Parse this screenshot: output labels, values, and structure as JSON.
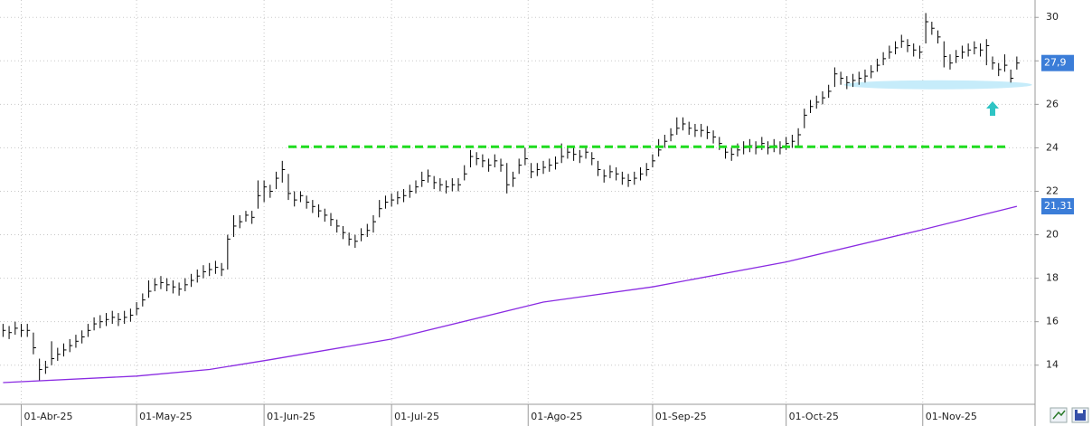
{
  "chart_data": {
    "type": "ohlc",
    "xlim": [
      -3.5,
      167
    ],
    "ylim": [
      12.2,
      30.8
    ],
    "grid": true,
    "yticks": [
      14,
      16,
      18,
      20,
      22,
      24,
      26,
      28,
      30
    ],
    "xticks": [
      {
        "value": 0,
        "label": "01-Abr-25"
      },
      {
        "value": 19,
        "label": "01-May-25"
      },
      {
        "value": 40,
        "label": "01-Jun-25"
      },
      {
        "value": 61,
        "label": "01-Jul-25"
      },
      {
        "value": 83.5,
        "label": "01-Ago-25"
      },
      {
        "value": 104,
        "label": "01-Sep-25"
      },
      {
        "value": 126,
        "label": "01-Oct-25"
      },
      {
        "value": 148.5,
        "label": "01-Nov-25"
      }
    ],
    "x": [
      -3,
      -2,
      -1,
      0,
      1,
      2,
      3,
      4,
      5,
      6,
      7,
      8,
      9,
      10,
      11,
      12,
      13,
      14,
      15,
      16,
      17,
      18,
      19,
      20,
      21,
      22,
      23,
      24,
      25,
      26,
      27,
      28,
      29,
      30,
      31,
      32,
      33,
      34,
      35,
      36,
      37,
      38,
      39,
      40,
      41,
      42,
      43,
      44,
      45,
      46,
      47,
      48,
      49,
      50,
      51,
      52,
      53,
      54,
      55,
      56,
      57,
      58,
      59,
      60,
      61,
      62,
      63,
      64,
      65,
      66,
      67,
      68,
      69,
      70,
      71,
      72,
      73,
      74,
      75,
      76,
      77,
      78,
      79,
      80,
      81,
      82,
      83,
      84,
      85,
      86,
      87,
      88,
      89,
      90,
      91,
      92,
      93,
      94,
      95,
      96,
      97,
      98,
      99,
      100,
      101,
      102,
      103,
      104,
      105,
      106,
      107,
      108,
      109,
      110,
      111,
      112,
      113,
      114,
      115,
      116,
      117,
      118,
      119,
      120,
      121,
      122,
      123,
      124,
      125,
      126,
      127,
      128,
      129,
      130,
      131,
      132,
      133,
      134,
      135,
      136,
      137,
      138,
      139,
      140,
      141,
      142,
      143,
      144,
      145,
      146,
      147,
      148,
      149,
      150,
      151,
      152,
      153,
      154,
      155,
      156,
      157,
      158,
      159,
      160,
      161,
      162,
      163,
      164
    ],
    "series": [
      {
        "color": "#000000",
        "close": [
          15.6,
          15.5,
          15.7,
          15.6,
          15.6,
          14.8,
          13.8,
          13.9,
          14.3,
          14.5,
          14.7,
          14.9,
          15.1,
          15.3,
          15.6,
          15.9,
          16.0,
          16.1,
          16.2,
          16.1,
          16.2,
          16.3,
          16.6,
          17.0,
          17.4,
          17.7,
          17.8,
          17.7,
          17.6,
          17.5,
          17.7,
          17.9,
          18.1,
          18.3,
          18.4,
          18.5,
          18.4,
          19.8,
          20.4,
          20.6,
          20.9,
          20.8,
          21.8,
          22.2,
          22.0,
          22.6,
          23.0,
          21.9,
          21.6,
          21.8,
          21.5,
          21.3,
          21.1,
          20.9,
          20.7,
          20.4,
          20.1,
          19.8,
          19.7,
          20.0,
          20.2,
          20.6,
          21.2,
          21.5,
          21.6,
          21.7,
          21.8,
          22.0,
          22.2,
          22.5,
          22.7,
          22.4,
          22.3,
          22.2,
          22.3,
          22.3,
          22.8,
          23.6,
          23.5,
          23.4,
          23.2,
          23.4,
          23.2,
          22.3,
          22.6,
          23.2,
          23.5,
          22.9,
          23.0,
          23.1,
          23.2,
          23.3,
          23.6,
          23.8,
          23.7,
          23.6,
          23.8,
          23.5,
          23.0,
          22.7,
          22.9,
          22.8,
          22.6,
          22.5,
          22.6,
          22.8,
          23.0,
          23.4,
          23.9,
          24.3,
          24.6,
          24.9,
          25.1,
          24.9,
          24.8,
          24.8,
          24.7,
          24.5,
          24.2,
          23.8,
          23.7,
          23.9,
          24.0,
          24.1,
          24.0,
          24.2,
          24.0,
          24.1,
          24.0,
          24.2,
          24.3,
          24.6,
          25.5,
          25.9,
          26.1,
          26.3,
          26.6,
          27.4,
          27.2,
          27.0,
          27.1,
          27.2,
          27.3,
          27.5,
          27.8,
          28.1,
          28.4,
          28.6,
          28.9,
          28.7,
          28.5,
          28.4,
          29.8,
          29.5,
          29.1,
          28.2,
          27.9,
          28.2,
          28.4,
          28.5,
          28.6,
          28.5,
          28.7,
          27.9,
          27.6,
          27.8,
          27.2,
          27.9
        ],
        "high": [
          15.9,
          15.8,
          16.0,
          15.9,
          15.9,
          15.5,
          14.3,
          14.2,
          15.1,
          14.8,
          15.0,
          15.2,
          15.4,
          15.6,
          15.9,
          16.2,
          16.3,
          16.4,
          16.5,
          16.4,
          16.5,
          16.6,
          16.9,
          17.3,
          17.9,
          18.0,
          18.1,
          18.0,
          17.9,
          17.8,
          18.0,
          18.2,
          18.4,
          18.6,
          18.7,
          18.8,
          18.7,
          20.0,
          20.9,
          20.9,
          21.1,
          21.1,
          22.5,
          22.5,
          22.3,
          22.9,
          23.4,
          22.8,
          22.0,
          22.0,
          21.8,
          21.6,
          21.4,
          21.2,
          21.0,
          20.7,
          20.4,
          20.1,
          20.0,
          20.3,
          20.5,
          20.9,
          21.6,
          21.8,
          21.9,
          22.0,
          22.1,
          22.3,
          22.5,
          22.9,
          23.0,
          22.7,
          22.6,
          22.5,
          22.6,
          22.6,
          23.2,
          23.9,
          23.8,
          23.7,
          23.5,
          23.7,
          23.5,
          23.3,
          22.9,
          23.5,
          24.0,
          23.3,
          23.3,
          23.4,
          23.5,
          23.6,
          24.2,
          24.1,
          24.0,
          23.9,
          24.1,
          23.8,
          23.4,
          23.0,
          23.2,
          23.1,
          22.9,
          22.8,
          22.9,
          23.1,
          23.3,
          23.7,
          24.4,
          24.6,
          24.9,
          25.4,
          25.4,
          25.2,
          25.1,
          25.1,
          25.0,
          24.8,
          24.5,
          24.1,
          24.0,
          24.2,
          24.3,
          24.4,
          24.3,
          24.5,
          24.3,
          24.4,
          24.3,
          24.5,
          24.6,
          24.9,
          25.8,
          26.2,
          26.4,
          26.6,
          26.9,
          27.7,
          27.5,
          27.3,
          27.4,
          27.5,
          27.6,
          27.8,
          28.1,
          28.4,
          28.7,
          28.9,
          29.2,
          29.0,
          28.8,
          28.7,
          30.2,
          29.8,
          29.4,
          28.9,
          28.3,
          28.5,
          28.7,
          28.8,
          28.9,
          28.8,
          29.0,
          28.2,
          27.9,
          28.3,
          27.6,
          28.2
        ],
        "low": [
          15.3,
          15.2,
          15.4,
          15.3,
          15.3,
          14.5,
          13.3,
          13.6,
          14.0,
          14.2,
          14.4,
          14.6,
          14.8,
          15.0,
          15.3,
          15.6,
          15.7,
          15.8,
          15.9,
          15.8,
          15.9,
          16.0,
          16.3,
          16.7,
          17.1,
          17.4,
          17.5,
          17.4,
          17.3,
          17.2,
          17.4,
          17.6,
          17.8,
          18.0,
          18.1,
          18.2,
          18.1,
          18.4,
          19.9,
          20.3,
          20.6,
          20.5,
          21.2,
          21.5,
          21.7,
          22.1,
          22.4,
          21.6,
          21.3,
          21.5,
          21.2,
          21.0,
          20.8,
          20.6,
          20.4,
          20.1,
          19.8,
          19.5,
          19.4,
          19.7,
          19.9,
          20.1,
          20.8,
          21.2,
          21.3,
          21.4,
          21.5,
          21.7,
          21.9,
          22.2,
          22.4,
          22.1,
          22.0,
          21.9,
          22.0,
          22.0,
          22.5,
          23.1,
          23.2,
          23.1,
          22.9,
          23.1,
          22.9,
          21.9,
          22.2,
          22.8,
          23.2,
          22.6,
          22.7,
          22.8,
          22.9,
          23.0,
          23.3,
          23.5,
          23.4,
          23.3,
          23.5,
          23.2,
          22.7,
          22.4,
          22.6,
          22.5,
          22.3,
          22.2,
          22.3,
          22.5,
          22.7,
          23.1,
          23.6,
          24.0,
          24.3,
          24.6,
          24.8,
          24.6,
          24.5,
          24.5,
          24.4,
          24.2,
          23.9,
          23.5,
          23.4,
          23.6,
          23.7,
          23.8,
          23.7,
          23.9,
          23.7,
          23.8,
          23.7,
          23.9,
          24.0,
          24.1,
          24.9,
          25.6,
          25.8,
          26.0,
          26.3,
          26.8,
          26.9,
          26.7,
          26.8,
          26.9,
          27.0,
          27.2,
          27.5,
          27.8,
          28.1,
          28.3,
          28.6,
          28.4,
          28.2,
          28.1,
          28.8,
          29.2,
          28.8,
          27.7,
          27.6,
          27.9,
          28.1,
          28.2,
          28.3,
          28.2,
          27.8,
          27.6,
          27.3,
          27.5,
          27.0,
          27.6
        ],
        "last_label": {
          "value": 27.9,
          "label": "27,9"
        },
        "label_color": "#3b7dd8"
      },
      {
        "color": "#8a2be2",
        "x": [
          -3,
          19,
          31,
          41,
          61,
          86,
          104,
          126,
          148,
          164
        ],
        "values": [
          13.2,
          13.5,
          13.8,
          14.25,
          15.2,
          16.9,
          17.6,
          18.75,
          20.2,
          21.31
        ],
        "last_label": {
          "value": 21.31,
          "label": "21,31"
        },
        "label_color": "#3b7dd8"
      }
    ],
    "support_line": {
      "y": 24.05,
      "x": [
        44,
        162.7
      ],
      "color": "#1fdc1f"
    },
    "highlight": {
      "y": 26.9,
      "x": [
        135.5,
        166.5
      ],
      "color": "#c6ecfa"
    }
  }
}
